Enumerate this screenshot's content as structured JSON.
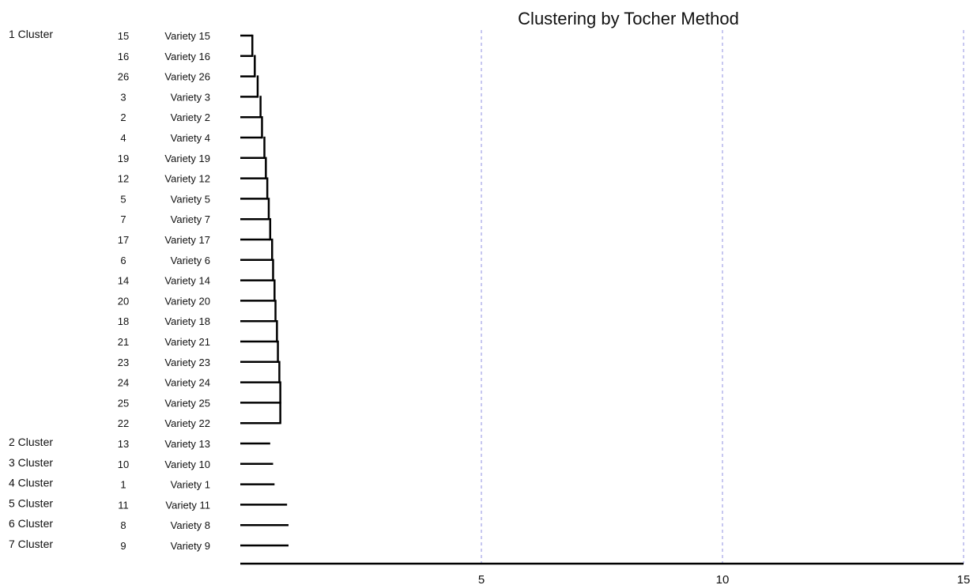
{
  "chart_data": {
    "type": "dendrogram",
    "title": "Clustering by Tocher Method",
    "xlim": [
      0,
      15
    ],
    "x_ticks": [
      5,
      10,
      15
    ],
    "grid": {
      "vertical": true
    },
    "rows": [
      {
        "cluster_label": "1 Cluster",
        "id": "15",
        "name": "Variety 15",
        "distance": 0.25
      },
      {
        "cluster_label": "",
        "id": "16",
        "name": "Variety 16",
        "distance": 0.25
      },
      {
        "cluster_label": "",
        "id": "26",
        "name": "Variety 26",
        "distance": 0.3
      },
      {
        "cluster_label": "",
        "id": "3",
        "name": "Variety 3",
        "distance": 0.36
      },
      {
        "cluster_label": "",
        "id": "2",
        "name": "Variety 2",
        "distance": 0.42
      },
      {
        "cluster_label": "",
        "id": "4",
        "name": "Variety 4",
        "distance": 0.45
      },
      {
        "cluster_label": "",
        "id": "19",
        "name": "Variety 19",
        "distance": 0.5
      },
      {
        "cluster_label": "",
        "id": "12",
        "name": "Variety 12",
        "distance": 0.53
      },
      {
        "cluster_label": "",
        "id": "5",
        "name": "Variety 5",
        "distance": 0.56
      },
      {
        "cluster_label": "",
        "id": "7",
        "name": "Variety 7",
        "distance": 0.59
      },
      {
        "cluster_label": "",
        "id": "17",
        "name": "Variety 17",
        "distance": 0.62
      },
      {
        "cluster_label": "",
        "id": "6",
        "name": "Variety 6",
        "distance": 0.66
      },
      {
        "cluster_label": "",
        "id": "14",
        "name": "Variety 14",
        "distance": 0.68
      },
      {
        "cluster_label": "",
        "id": "20",
        "name": "Variety 20",
        "distance": 0.71
      },
      {
        "cluster_label": "",
        "id": "18",
        "name": "Variety 18",
        "distance": 0.73
      },
      {
        "cluster_label": "",
        "id": "21",
        "name": "Variety 21",
        "distance": 0.76
      },
      {
        "cluster_label": "",
        "id": "23",
        "name": "Variety 23",
        "distance": 0.78
      },
      {
        "cluster_label": "",
        "id": "24",
        "name": "Variety 24",
        "distance": 0.81
      },
      {
        "cluster_label": "",
        "id": "25",
        "name": "Variety 25",
        "distance": 0.83
      },
      {
        "cluster_label": "",
        "id": "22",
        "name": "Variety 22",
        "distance": 0.83
      },
      {
        "cluster_label": "2 Cluster",
        "id": "13",
        "name": "Variety 13",
        "distance": 0.62
      },
      {
        "cluster_label": "3 Cluster",
        "id": "10",
        "name": "Variety 10",
        "distance": 0.68
      },
      {
        "cluster_label": "4 Cluster",
        "id": "1",
        "name": "Variety 1",
        "distance": 0.71
      },
      {
        "cluster_label": "5 Cluster",
        "id": "11",
        "name": "Variety 11",
        "distance": 0.97
      },
      {
        "cluster_label": "6 Cluster",
        "id": "8",
        "name": "Variety 8",
        "distance": 1.0
      },
      {
        "cluster_label": "7 Cluster",
        "id": "9",
        "name": "Variety 9",
        "distance": 1.0
      }
    ],
    "cluster_1_joins": [
      {
        "between": [
          "Variety 15",
          "Variety 16"
        ],
        "height": 0.25
      },
      {
        "between": [
          "Variety 16",
          "Variety 26"
        ],
        "height": 0.3
      },
      {
        "between": [
          "Variety 26",
          "Variety 3"
        ],
        "height": 0.36
      },
      {
        "between": [
          "Variety 3",
          "Variety 2"
        ],
        "height": 0.42
      },
      {
        "between": [
          "Variety 2",
          "Variety 4"
        ],
        "height": 0.45
      },
      {
        "between": [
          "Variety 4",
          "Variety 19"
        ],
        "height": 0.5
      },
      {
        "between": [
          "Variety 19",
          "Variety 12"
        ],
        "height": 0.53
      },
      {
        "between": [
          "Variety 12",
          "Variety 5"
        ],
        "height": 0.56
      },
      {
        "between": [
          "Variety 5",
          "Variety 7"
        ],
        "height": 0.59
      },
      {
        "between": [
          "Variety 7",
          "Variety 17"
        ],
        "height": 0.62
      },
      {
        "between": [
          "Variety 17",
          "Variety 6"
        ],
        "height": 0.66
      },
      {
        "between": [
          "Variety 6",
          "Variety 14"
        ],
        "height": 0.68
      },
      {
        "between": [
          "Variety 14",
          "Variety 20"
        ],
        "height": 0.71
      },
      {
        "between": [
          "Variety 20",
          "Variety 18"
        ],
        "height": 0.73
      },
      {
        "between": [
          "Variety 18",
          "Variety 21"
        ],
        "height": 0.76
      },
      {
        "between": [
          "Variety 21",
          "Variety 23"
        ],
        "height": 0.78
      },
      {
        "between": [
          "Variety 23",
          "Variety 24"
        ],
        "height": 0.81
      },
      {
        "between": [
          "Variety 24",
          "Variety 25"
        ],
        "height": 0.83
      },
      {
        "between": [
          "Variety 25",
          "Variety 22"
        ],
        "height": 0.83
      }
    ],
    "colors": {
      "line": "#000000",
      "grid": "#8f8fe0",
      "text": "#111111"
    }
  }
}
